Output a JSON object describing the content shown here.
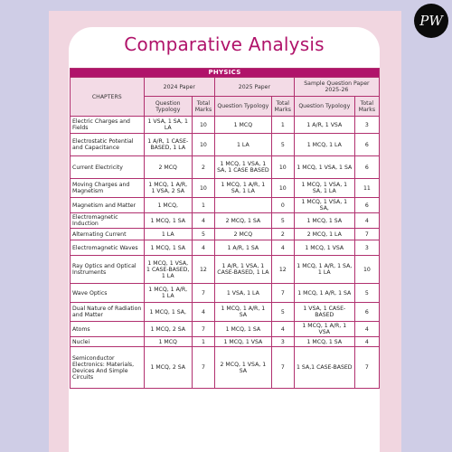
{
  "title": "Comparative Analysis",
  "logo": "PW",
  "table": {
    "subject": "PHYSICS",
    "chapters_header": "CHAPTERS",
    "groups": [
      "2024 Paper",
      "2025 Paper",
      "Sample Question Paper 2025-26"
    ],
    "sub_headers": [
      "Question Typology",
      "Total Marks"
    ],
    "rows": [
      {
        "chapter": "Electric Charges and Fields",
        "y24": "1 VSA, 1 SA, 1 LA",
        "m24": "10",
        "y25": "1 MCQ",
        "m25": "1",
        "ysqp": "1 A/R, 1 VSA",
        "msqp": "3"
      },
      {
        "chapter": "Electrostatic Potential and Capacitance",
        "y24": "1 A/R, 1 CASE-BASED, 1 LA",
        "m24": "10",
        "y25": "1 LA",
        "m25": "5",
        "ysqp": "1 MCQ, 1 LA",
        "msqp": "6"
      },
      {
        "chapter": "Current Electricity",
        "y24": "2 MCQ",
        "m24": "2",
        "y25": "1 MCQ, 1 VSA, 1 SA, 1 CASE BASED",
        "m25": "10",
        "ysqp": "1 MCQ, 1 VSA, 1 SA",
        "msqp": "6"
      },
      {
        "chapter": "Moving Charges and Magnetism",
        "y24": "1 MCQ, 1 A/R, 1 VSA, 2 SA",
        "m24": "10",
        "y25": "1 MCQ, 1 A/R, 1 SA, 1 LA",
        "m25": "10",
        "ysqp": "1 MCQ, 1 VSA, 1 SA, 1 LA",
        "msqp": "11"
      },
      {
        "chapter": "Magnetism and Matter",
        "y24": "1 MCQ,",
        "m24": "1",
        "y25": "",
        "m25": "0",
        "ysqp": "1 MCQ, 1 VSA, 1 SA,",
        "msqp": "6"
      },
      {
        "chapter": "Electromagnetic Induction",
        "y24": "1 MCQ, 1 SA",
        "m24": "4",
        "y25": "2 MCQ, 1 SA",
        "m25": "5",
        "ysqp": "1 MCQ, 1 SA",
        "msqp": "4"
      },
      {
        "chapter": "Alternating Current",
        "y24": "1 LA",
        "m24": "5",
        "y25": "2 MCQ",
        "m25": "2",
        "ysqp": "2 MCQ, 1 LA",
        "msqp": "7"
      },
      {
        "chapter": "Electromagnetic Waves",
        "y24": "1 MCQ, 1 SA",
        "m24": "4",
        "y25": "1 A/R, 1 SA",
        "m25": "4",
        "ysqp": "1 MCQ, 1 VSA",
        "msqp": "3"
      },
      {
        "chapter": "Ray Optics and Optical Instruments",
        "y24": "1 MCQ, 1 VSA, 1 CASE-BASED, 1 LA",
        "m24": "12",
        "y25": "1 A/R, 1 VSA, 1 CASE-BASED, 1 LA",
        "m25": "12",
        "ysqp": "1 MCQ, 1 A/R, 1 SA, 1 LA",
        "msqp": "10"
      },
      {
        "chapter": "Wave Optics",
        "y24": "1 MCQ, 1 A/R, 1 LA",
        "m24": "7",
        "y25": "1 VSA, 1 LA",
        "m25": "7",
        "ysqp": "1 MCQ, 1 A/R, 1 SA",
        "msqp": "5"
      },
      {
        "chapter": "Dual Nature of Radiation and Matter",
        "y24": "1 MCQ, 1 SA,",
        "m24": "4",
        "y25": "1 MCQ, 1 A/R, 1 SA",
        "m25": "5",
        "ysqp": "1 VSA, 1 CASE-BASED",
        "msqp": "6"
      },
      {
        "chapter": "Atoms",
        "y24": "1 MCQ, 2 SA",
        "m24": "7",
        "y25": "1 MCQ, 1 SA",
        "m25": "4",
        "ysqp": "1 MCQ, 1 A/R, 1 VSA",
        "msqp": "4"
      },
      {
        "chapter": "Nuclei",
        "y24": "1 MCQ",
        "m24": "1",
        "y25": "1 MCQ, 1 VSA",
        "m25": "3",
        "ysqp": "1 MCQ, 1 SA",
        "msqp": "4"
      },
      {
        "chapter": "Semiconductor Electronics: Materials, Devices And Simple Circuits",
        "y24": "1 MCQ, 2 SA",
        "m24": "7",
        "y25": "2 MCQ, 1 VSA, 1 SA",
        "m25": "7",
        "ysqp": "1 SA,1 CASE-BASED",
        "msqp": "7"
      }
    ]
  }
}
